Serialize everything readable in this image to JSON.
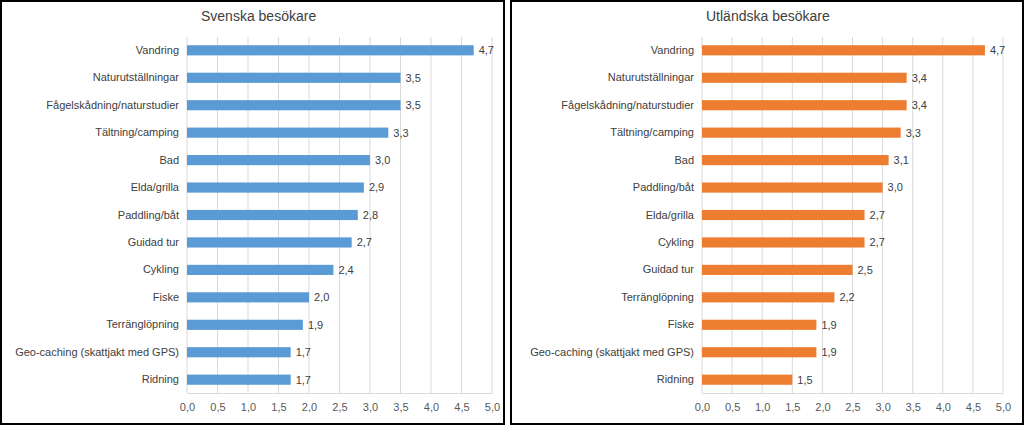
{
  "chart_data": [
    {
      "type": "bar",
      "orientation": "horizontal",
      "title": "Svenska besökare",
      "categories": [
        "Vandring",
        "Naturutställningar",
        "Fågelskådning/naturstudier",
        "Tältning/camping",
        "Bad",
        "Elda/grilla",
        "Paddling/båt",
        "Guidad tur",
        "Cykling",
        "Fiske",
        "Terränglöpning",
        "Geo-caching (skattjakt med GPS)",
        "Ridning"
      ],
      "values": [
        4.7,
        3.5,
        3.5,
        3.3,
        3.0,
        2.9,
        2.8,
        2.7,
        2.4,
        2.0,
        1.9,
        1.7,
        1.7
      ],
      "value_labels": [
        "4,7",
        "3,5",
        "3,5",
        "3,3",
        "3,0",
        "2,9",
        "2,8",
        "2,7",
        "2,4",
        "2,0",
        "1,9",
        "1,7",
        "1,7"
      ],
      "color": "#5b9bd5",
      "xlim": [
        0,
        5
      ],
      "xticks": [
        {
          "value": 0,
          "label": "0,0"
        },
        {
          "value": 0.5,
          "label": "0,5"
        },
        {
          "value": 1,
          "label": "1,0"
        },
        {
          "value": 1.5,
          "label": "1,5"
        },
        {
          "value": 2,
          "label": "2,0"
        },
        {
          "value": 2.5,
          "label": "2,5"
        },
        {
          "value": 3,
          "label": "3,0"
        },
        {
          "value": 3.5,
          "label": "3,5"
        },
        {
          "value": 4,
          "label": "4,0"
        },
        {
          "value": 4.5,
          "label": "4,5"
        },
        {
          "value": 5,
          "label": "5,0"
        }
      ],
      "grid": true,
      "data_labels": true
    },
    {
      "type": "bar",
      "orientation": "horizontal",
      "title": "Utländska besökare",
      "categories": [
        "Vandring",
        "Naturutställningar",
        "Fågelskådning/naturstudier",
        "Tältning/camping",
        "Bad",
        "Paddling/båt",
        "Elda/grilla",
        "Cykling",
        "Guidad tur",
        "Terränglöpning",
        "Fiske",
        "Geo-caching (skattjakt med GPS)",
        "Ridning"
      ],
      "values": [
        4.7,
        3.4,
        3.4,
        3.3,
        3.1,
        3.0,
        2.7,
        2.7,
        2.5,
        2.2,
        1.9,
        1.9,
        1.5
      ],
      "value_labels": [
        "4,7",
        "3,4",
        "3,4",
        "3,3",
        "3,1",
        "3,0",
        "2,7",
        "2,7",
        "2,5",
        "2,2",
        "1,9",
        "1,9",
        "1,5"
      ],
      "color": "#ed7d31",
      "xlim": [
        0,
        5
      ],
      "xticks": [
        {
          "value": 0,
          "label": "0,0"
        },
        {
          "value": 0.5,
          "label": "0,5"
        },
        {
          "value": 1,
          "label": "1,0"
        },
        {
          "value": 1.5,
          "label": "1,5"
        },
        {
          "value": 2,
          "label": "2,0"
        },
        {
          "value": 2.5,
          "label": "2,5"
        },
        {
          "value": 3,
          "label": "3,0"
        },
        {
          "value": 3.5,
          "label": "3,5"
        },
        {
          "value": 4,
          "label": "4,0"
        },
        {
          "value": 4.5,
          "label": "4,5"
        },
        {
          "value": 5,
          "label": "5,0"
        }
      ],
      "grid": true,
      "data_labels": true
    }
  ]
}
